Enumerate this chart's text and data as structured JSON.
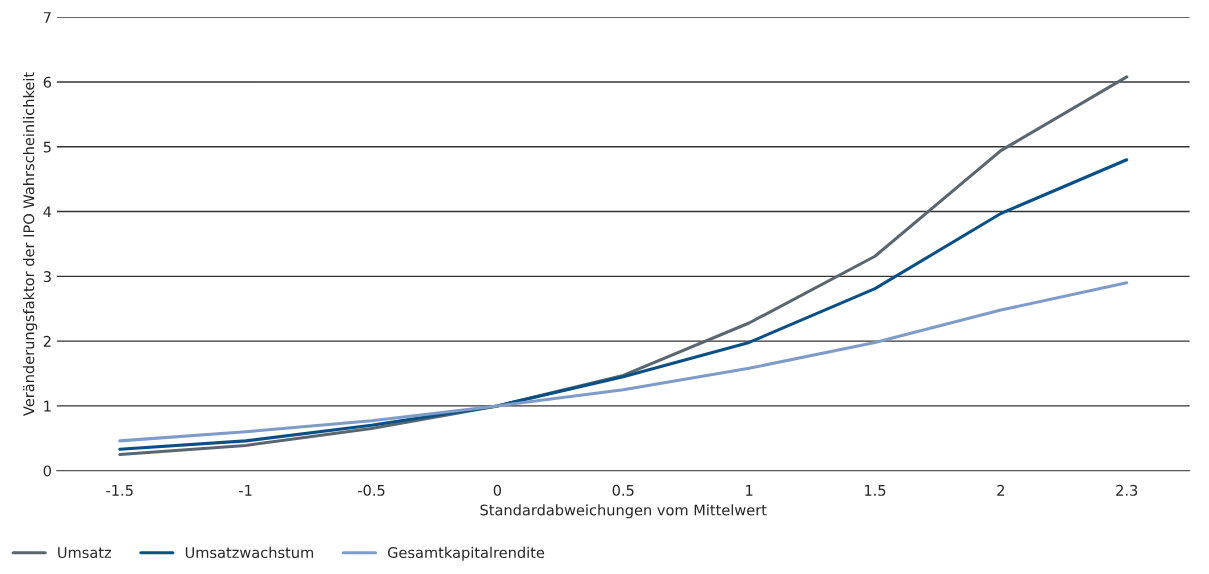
{
  "chart_data": {
    "type": "line",
    "xlabel": "Standardabweichungen vom Mittelwert",
    "ylabel": "Veränderungsfaktor der IPO Wahrscheinlichkeit",
    "categories": [
      "-1.5",
      "-1",
      "-0.5",
      "0",
      "0.5",
      "1",
      "1.5",
      "2",
      "2.3"
    ],
    "series": [
      {
        "name": "Umsatz",
        "color": "#5a6770",
        "values": [
          0.25,
          0.39,
          0.65,
          1.0,
          1.47,
          2.28,
          3.31,
          4.94,
          6.08
        ]
      },
      {
        "name": "Umsatzwachstum",
        "color": "#0a5085",
        "values": [
          0.33,
          0.46,
          0.7,
          1.0,
          1.45,
          1.98,
          2.81,
          3.97,
          4.8
        ]
      },
      {
        "name": "Gesamtkapitalrendite",
        "color": "#7f9cc8",
        "values": [
          0.46,
          0.6,
          0.77,
          1.0,
          1.25,
          1.58,
          1.98,
          2.48,
          2.9
        ]
      }
    ],
    "ylim": [
      0,
      7
    ],
    "yticks": [
      0,
      1,
      2,
      3,
      4,
      5,
      6,
      7
    ],
    "grid": "y",
    "legend": "bottom left",
    "marker": "none",
    "line_style": "solid"
  }
}
